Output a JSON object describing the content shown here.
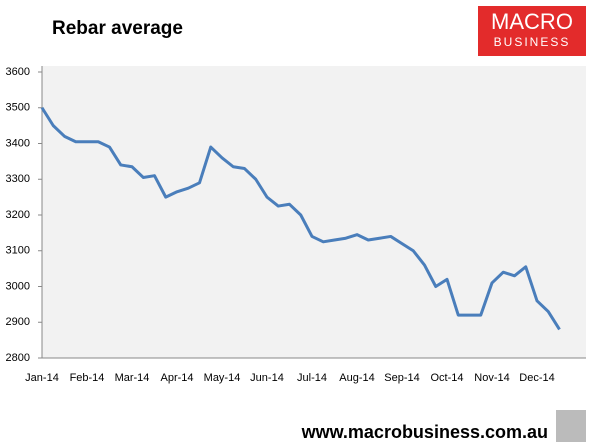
{
  "chart_data": {
    "type": "line",
    "title": "Rebar average",
    "categories": [
      "Jan-14",
      null,
      null,
      null,
      "Feb-14",
      null,
      null,
      null,
      "Mar-14",
      null,
      null,
      null,
      "Apr-14",
      null,
      null,
      null,
      "May-14",
      null,
      null,
      null,
      "Jun-14",
      null,
      null,
      null,
      "Jul-14",
      null,
      null,
      null,
      "Aug-14",
      null,
      null,
      null,
      "Sep-14",
      null,
      null,
      null,
      "Oct-14",
      null,
      null,
      null,
      "Nov-14",
      null,
      null,
      null,
      "Dec-14",
      null,
      null
    ],
    "values": [
      3500,
      3450,
      3420,
      3405,
      3405,
      3405,
      3390,
      3340,
      3335,
      3305,
      3310,
      3250,
      3265,
      3275,
      3290,
      3390,
      3360,
      3335,
      3330,
      3300,
      3250,
      3225,
      3230,
      3200,
      3140,
      3125,
      3130,
      3135,
      3145,
      3130,
      3135,
      3140,
      3120,
      3100,
      3060,
      3000,
      3020,
      2920,
      2920,
      2920,
      3010,
      3040,
      3030,
      3055,
      2960,
      2930,
      2880
    ],
    "color": "#4a7ebb",
    "ylim": [
      2800,
      3600
    ],
    "yticks": [
      2800,
      2900,
      3000,
      3100,
      3200,
      3300,
      3400,
      3500,
      3600
    ]
  },
  "branding": {
    "logo_top": "MACRO",
    "logo_bottom": "BUSINESS",
    "website": "www.macrobusiness.com.au"
  }
}
